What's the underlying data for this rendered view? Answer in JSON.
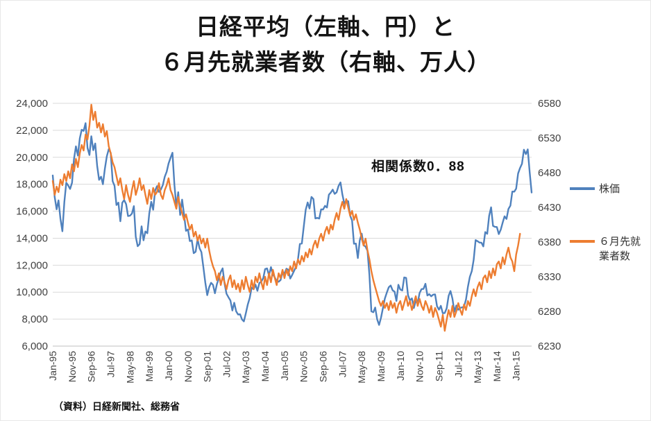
{
  "title": {
    "line1": "日経平均（左軸、円）と",
    "line2": "６月先就業者数（右軸、万人）"
  },
  "annotation": "相関係数0．88",
  "source": "（資料）日経新聞社、総務省",
  "colors": {
    "stock_line": "#4F81BD",
    "employment_line": "#ED7D31",
    "gridline": "#D9D9D9",
    "axis_line": "#BFBFBF",
    "tick_text": "#404040"
  },
  "chart_data": {
    "type": "line",
    "title": "日経平均（左軸、円）と６月先就業者数（右軸、万人）",
    "x_start": "Jan-95",
    "x_tick_step_months": 10,
    "x_tick_labels": [
      "Jan-95",
      "Nov-95",
      "Sep-96",
      "Jul-97",
      "May-98",
      "Mar-99",
      "Jan-00",
      "Nov-00",
      "Sep-01",
      "Jul-02",
      "May-03",
      "Mar-04",
      "Jan-05",
      "Nov-05",
      "Sep-06",
      "Jul-07",
      "May-08",
      "Mar-09",
      "Jan-10",
      "Nov-10",
      "Sep-11",
      "Jul-12",
      "May-13",
      "Mar-14",
      "Jan-15"
    ],
    "y_left": {
      "min": 6000,
      "max": 24000,
      "step": 2000,
      "tick_labels": [
        "6,000",
        "8,000",
        "10,000",
        "12,000",
        "14,000",
        "16,000",
        "18,000",
        "20,000",
        "22,000",
        "24,000"
      ]
    },
    "y_right": {
      "min": 6230,
      "max": 6580,
      "step": 50,
      "tick_labels": [
        "6230",
        "6280",
        "6330",
        "6380",
        "6430",
        "6480",
        "6530",
        "6580"
      ]
    },
    "grid": true,
    "legend_position": "right",
    "series": [
      {
        "name": "株価",
        "axis": "left",
        "color": "#4F81BD",
        "values": [
          18650,
          17053,
          16140,
          16807,
          15437,
          14517,
          16678,
          18117,
          17913,
          17655,
          18109,
          19868,
          20813,
          20125,
          21407,
          22041,
          21956,
          22531,
          20693,
          20167,
          21556,
          20527,
          21020,
          19361,
          18330,
          18557,
          18003,
          19151,
          20069,
          20605,
          20331,
          18229,
          17888,
          16459,
          16636,
          15259,
          16628,
          16832,
          16527,
          15641,
          15671,
          15830,
          16379,
          14108,
          13406,
          13565,
          14884,
          13842,
          14499,
          14368,
          15837,
          16702,
          16112,
          17530,
          17861,
          17431,
          17605,
          17942,
          18558,
          18934,
          19540,
          19959,
          20337,
          17974,
          16332,
          17411,
          15727,
          16861,
          15747,
          14540,
          14649,
          13786,
          13844,
          12884,
          12999,
          13934,
          13262,
          12969,
          11861,
          10714,
          9775,
          10366,
          10697,
          10543,
          9920,
          10588,
          11025,
          11493,
          11764,
          10622,
          9878,
          9619,
          9383,
          8640,
          9216,
          8579,
          8339,
          8363,
          7973,
          7831,
          8425,
          9083,
          9563,
          10343,
          10219,
          10559,
          10100,
          10677,
          10784,
          11041,
          11715,
          11762,
          11236,
          11859,
          11326,
          11082,
          10824,
          10772,
          10899,
          11489,
          11388,
          11740,
          11669,
          11009,
          11277,
          11584,
          11900,
          12414,
          13574,
          13606,
          14872,
          16111,
          16649,
          16205,
          17060,
          16906,
          15467,
          15505,
          15457,
          16141,
          16128,
          16399,
          16274,
          17226,
          17383,
          17604,
          17288,
          17400,
          17876,
          18138,
          17249,
          16569,
          16786,
          16738,
          15681,
          15308,
          13592,
          13603,
          12526,
          13850,
          14339,
          13481,
          13377,
          13073,
          11260,
          8577,
          8512,
          8860,
          7994,
          7568,
          8110,
          8828,
          9523,
          9958,
          10357,
          10493,
          10133,
          10035,
          9346,
          10546,
          10198,
          10126,
          11090,
          11057,
          9769,
          9383,
          9537,
          8824,
          9369,
          9202,
          9937,
          10229,
          10238,
          10624,
          9755,
          9850,
          9694,
          9816,
          9833,
          8955,
          8700,
          8988,
          8435,
          8455,
          8803,
          9723,
          10084,
          9521,
          8543,
          9007,
          8695,
          8840,
          8870,
          8928,
          9446,
          10395,
          11139,
          11560,
          12398,
          13861,
          13775,
          13677,
          13668,
          13389,
          14456,
          14328,
          15662,
          16291,
          14915,
          14841,
          14828,
          14304,
          14632,
          15162,
          15621,
          15425,
          16174,
          16414,
          17460,
          17451,
          17674,
          18798,
          19207,
          19520,
          20563,
          20236,
          20585,
          18890,
          17388
        ]
      },
      {
        "name": "６月先就業者数",
        "axis": "right",
        "color": "#ED7D31",
        "values": [
          6468,
          6448,
          6460,
          6452,
          6470,
          6462,
          6478,
          6468,
          6482,
          6472,
          6492,
          6482,
          6500,
          6488,
          6508,
          6520,
          6512,
          6535,
          6528,
          6548,
          6578,
          6556,
          6568,
          6545,
          6552,
          6538,
          6550,
          6532,
          6540,
          6518,
          6508,
          6495,
          6488,
          6475,
          6462,
          6472,
          6455,
          6442,
          6462,
          6448,
          6438,
          6455,
          6468,
          6448,
          6458,
          6472,
          6455,
          6462,
          6448,
          6435,
          6455,
          6442,
          6458,
          6448,
          6452,
          6465,
          6448,
          6442,
          6455,
          6462,
          6472,
          6455,
          6448,
          6438,
          6428,
          6445,
          6432,
          6422,
          6412,
          6420,
          6408,
          6398,
          6405,
          6388,
          6395,
          6382,
          6390,
          6378,
          6385,
          6372,
          6385,
          6368,
          6355,
          6345,
          6338,
          6325,
          6335,
          6318,
          6330,
          6322,
          6312,
          6325,
          6332,
          6315,
          6325,
          6312,
          6320,
          6308,
          6325,
          6312,
          6330,
          6318,
          6308,
          6325,
          6312,
          6330,
          6322,
          6335,
          6322,
          6312,
          6330,
          6318,
          6335,
          6322,
          6340,
          6328,
          6318,
          6335,
          6328,
          6340,
          6328,
          6340,
          6332,
          6345,
          6338,
          6352,
          6342,
          6355,
          6348,
          6360,
          6352,
          6365,
          6358,
          6370,
          6362,
          6375,
          6382,
          6372,
          6385,
          6392,
          6382,
          6395,
          6402,
          6392,
          6405,
          6398,
          6412,
          6422,
          6412,
          6428,
          6438,
          6428,
          6442,
          6430,
          6418,
          6425,
          6412,
          6420,
          6408,
          6398,
          6385,
          6375,
          6385,
          6368,
          6355,
          6338,
          6325,
          6315,
          6305,
          6295,
          6288,
          6295,
          6285,
          6292,
          6282,
          6295,
          6285,
          6292,
          6278,
          6290,
          6295,
          6282,
          6292,
          6302,
          6288,
          6295,
          6282,
          6292,
          6302,
          6288,
          6298,
          6288,
          6282,
          6295,
          6288,
          6278,
          6288,
          6272,
          6285,
          6278,
          6268,
          6258,
          6275,
          6252,
          6268,
          6282,
          6272,
          6288,
          6272,
          6280,
          6292,
          6282,
          6275,
          6290,
          6282,
          6295,
          6288,
          6302,
          6312,
          6302,
          6315,
          6322,
          6312,
          6328,
          6332,
          6322,
          6338,
          6328,
          6342,
          6332,
          6348,
          6352,
          6342,
          6358,
          6348,
          6362,
          6372,
          6358,
          6352,
          6338,
          6362,
          6375,
          6392
        ]
      }
    ]
  }
}
